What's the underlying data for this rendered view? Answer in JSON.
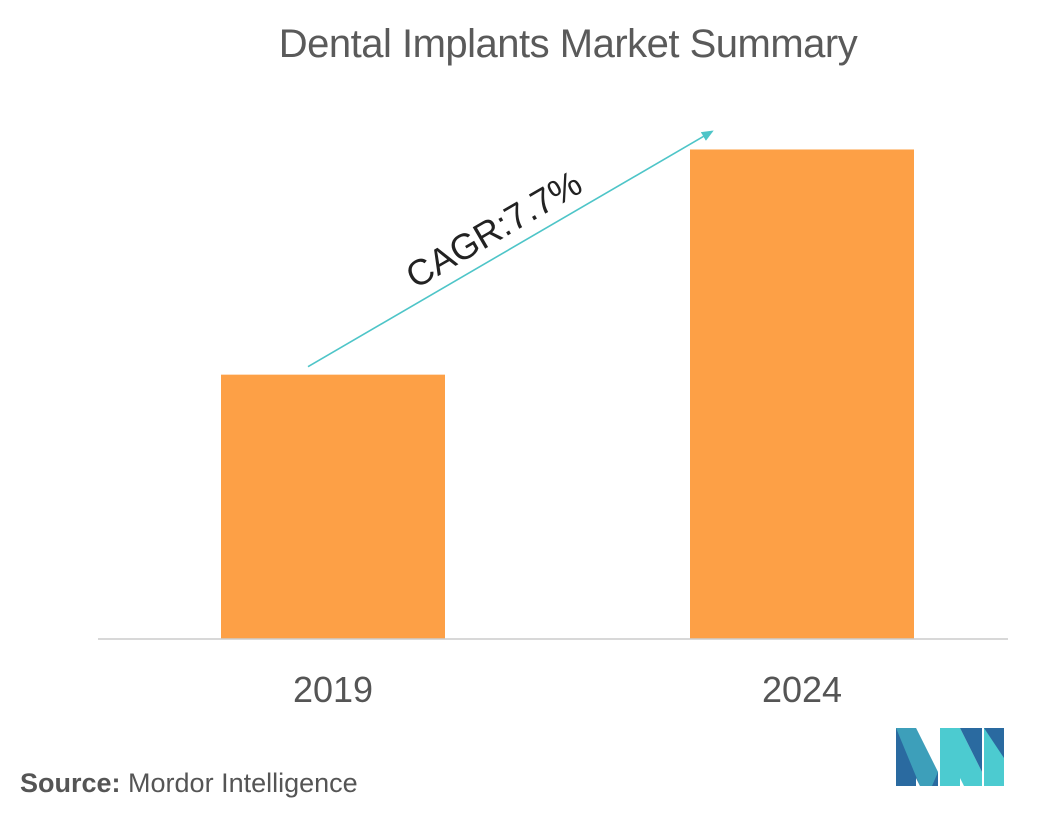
{
  "chart_data": {
    "type": "bar",
    "title": "Dental Implants Market Summary",
    "categories": [
      "2019",
      "2024"
    ],
    "values": [
      0.54,
      1.0
    ],
    "ylim": [
      0,
      1.05
    ],
    "xlabel": "",
    "ylabel": "",
    "grid": false,
    "legend": "none",
    "annotation": {
      "text": "CAGR:7.7%",
      "from_category": "2019",
      "to_category": "2024"
    }
  },
  "colors": {
    "bar": "#fda046",
    "arrow": "#4ec5c8",
    "axis": "#cccccc",
    "logo_dark": "#2a6aa0",
    "logo_light": "#4ccbd0"
  },
  "source": {
    "label": "Source:",
    "value": "Mordor Intelligence"
  },
  "logo": {
    "icon": "mordor-intelligence-logo-icon"
  }
}
